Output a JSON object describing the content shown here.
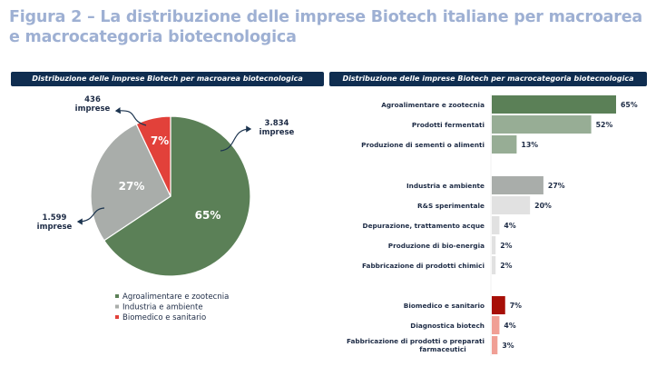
{
  "title": "Figura 2 – La distribuzione delle imprese Biotech italiane per macroarea e macrocategoria biotecnologica",
  "chart_data": [
    {
      "type": "pie",
      "title": "Distribuzione delle imprese Biotech per macroarea biotecnologica",
      "slices": [
        {
          "name": "Agroalimentare e zootecnia",
          "percent": 65,
          "label": "65%",
          "count_label": "3.834",
          "unit": "imprese",
          "color": "#5b8057"
        },
        {
          "name": "Industria e ambiente",
          "percent": 27,
          "label": "27%",
          "count_label": "1.599",
          "unit": "imprese",
          "color": "#a9adaa"
        },
        {
          "name": "Biomedico e sanitario",
          "percent": 7,
          "label": "7%",
          "count_label": "436",
          "unit": "imprese",
          "color": "#e2413a"
        }
      ],
      "legend": "bottom"
    },
    {
      "type": "bar",
      "orientation": "horizontal",
      "title": "Distribuzione delle imprese Biotech per macrocategoria biotecnologica",
      "groups": [
        {
          "bars": [
            {
              "category": "Agroalimentare e zootecnia",
              "value": 65,
              "label": "65%",
              "color": "#5b8057"
            },
            {
              "category": "Prodotti fermentati",
              "value": 52,
              "label": "52%",
              "color": "#97ad95"
            },
            {
              "category": "Produzione di sementi o alimenti",
              "value": 13,
              "label": "13%",
              "color": "#97ad95"
            }
          ]
        },
        {
          "bars": [
            {
              "category": "Industria e ambiente",
              "value": 27,
              "label": "27%",
              "color": "#a9adaa"
            },
            {
              "category": "R&S sperimentale",
              "value": 20,
              "label": "20%",
              "color": "#e1e1e1"
            },
            {
              "category": "Depurazione, trattamento acque",
              "value": 4,
              "label": "4%",
              "color": "#e1e1e1"
            },
            {
              "category": "Produzione di bio-energia",
              "value": 2,
              "label": "2%",
              "color": "#e1e1e1"
            },
            {
              "category": "Fabbricazione di prodotti chimici",
              "value": 2,
              "label": "2%",
              "color": "#e1e1e1"
            }
          ]
        },
        {
          "bars": [
            {
              "category": "Biomedico e sanitario",
              "value": 7,
              "label": "7%",
              "color": "#a70f07"
            },
            {
              "category": "Diagnostica biotech",
              "value": 4,
              "label": "4%",
              "color": "#f09f95"
            },
            {
              "category": "Fabbricazione di prodotti o preparati farmaceutici",
              "value": 3,
              "label": "3%",
              "color": "#f09f95"
            }
          ]
        }
      ]
    }
  ]
}
